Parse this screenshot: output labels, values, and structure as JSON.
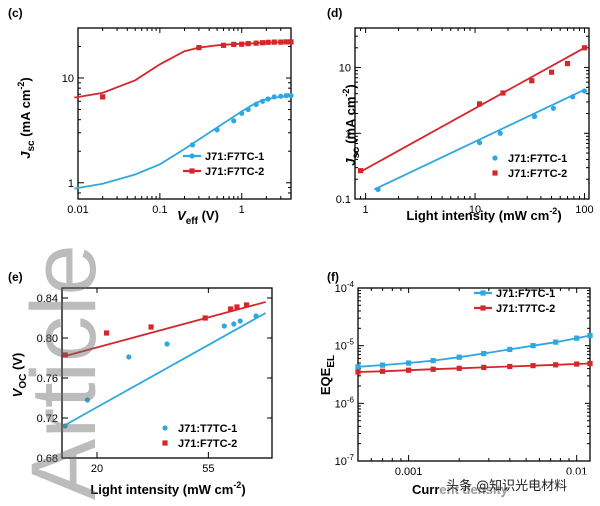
{
  "colors": {
    "blue": "#2fa7e0",
    "red": "#d6262b"
  },
  "watermark": {
    "vertical_text": "Article",
    "caption": "头条 @知识光电材料"
  },
  "chart_data": [
    {
      "id": "c",
      "panel_label": "(c)",
      "type": "line",
      "xscale": "log",
      "yscale": "log",
      "xlim": [
        0.01,
        4
      ],
      "ylim": [
        0.7,
        30
      ],
      "xlabel": "Veff (V)",
      "ylabel": "Jsc (mA cm-2)",
      "xticks": [
        {
          "v": 0.01,
          "label": "0.01"
        },
        {
          "v": 0.1,
          "label": "0.1"
        },
        {
          "v": 1,
          "label": "1"
        }
      ],
      "yticks": [
        {
          "v": 1,
          "label": "1"
        },
        {
          "v": 10,
          "label": "10"
        }
      ],
      "legend": {
        "position": "bottom-right"
      },
      "series": [
        {
          "name": "J71:F7TC-1",
          "color": "#2fa7e0",
          "marker": "circle",
          "curve_x": [
            0.009,
            0.02,
            0.05,
            0.1,
            0.2,
            0.4,
            0.7,
            1.0,
            1.5,
            2.0,
            3.0,
            4.0
          ],
          "curve_y": [
            0.88,
            0.98,
            1.2,
            1.5,
            2.1,
            3.0,
            4.0,
            4.8,
            5.8,
            6.3,
            6.6,
            6.7
          ],
          "x": [
            0.25,
            0.5,
            0.8,
            1.0,
            1.2,
            1.5,
            1.8,
            2.1,
            2.5,
            3.0,
            3.5,
            4.0
          ],
          "y": [
            2.3,
            3.2,
            3.9,
            4.6,
            5.0,
            5.6,
            6.0,
            6.3,
            6.6,
            6.7,
            6.8,
            6.8
          ]
        },
        {
          "name": "J71:F7TC-2",
          "color": "#d6262b",
          "marker": "square",
          "curve_x": [
            0.009,
            0.02,
            0.05,
            0.1,
            0.2,
            0.3,
            0.5,
            0.8,
            1.0,
            1.5,
            2.0,
            3.0,
            4.0
          ],
          "curve_y": [
            6.5,
            7.2,
            9.5,
            13.5,
            18.0,
            19.5,
            20.5,
            21.0,
            21.2,
            21.5,
            21.8,
            22.0,
            22.1
          ],
          "x": [
            0.02,
            0.3,
            0.6,
            0.8,
            1.0,
            1.2,
            1.5,
            1.8,
            2.1,
            2.5,
            3.0,
            3.5,
            4.0
          ],
          "y": [
            6.6,
            19.5,
            20.5,
            20.9,
            21.0,
            21.3,
            21.5,
            21.7,
            21.9,
            22.0,
            22.0,
            22.1,
            22.1
          ]
        }
      ]
    },
    {
      "id": "d",
      "panel_label": "(d)",
      "type": "scatter",
      "xscale": "log",
      "yscale": "log",
      "xlim": [
        0.8,
        110
      ],
      "ylim": [
        0.1,
        40
      ],
      "xlabel": "Light intensity (mW cm-2)",
      "ylabel": "Jsc (mA cm-2)",
      "xticks": [
        {
          "v": 1,
          "label": "1"
        },
        {
          "v": 10,
          "label": "10"
        },
        {
          "v": 100,
          "label": "100"
        }
      ],
      "yticks": [
        {
          "v": 0.1,
          "label": "0.1"
        },
        {
          "v": 1,
          "label": "1"
        },
        {
          "v": 10,
          "label": "10"
        }
      ],
      "legend": {
        "position": "bottom-right"
      },
      "series": [
        {
          "name": "J71:F7TC-1",
          "color": "#2fa7e0",
          "marker": "circle",
          "fit": [
            [
              1.2,
              0.14
            ],
            [
              100,
              4.6
            ]
          ],
          "x": [
            1.3,
            11,
            17,
            35,
            52,
            78,
            100
          ],
          "y": [
            0.14,
            0.72,
            1.0,
            1.8,
            2.4,
            3.6,
            4.4
          ]
        },
        {
          "name": "J71:F7TC-2",
          "color": "#d6262b",
          "marker": "square",
          "fit": [
            [
              0.9,
              0.26
            ],
            [
              100,
              20
            ]
          ],
          "x": [
            0.9,
            11,
            18,
            33,
            50,
            70,
            100
          ],
          "y": [
            0.27,
            2.8,
            4.1,
            6.3,
            8.5,
            11.5,
            20
          ]
        }
      ]
    },
    {
      "id": "e",
      "panel_label": "(e)",
      "type": "scatter",
      "xscale": "linear",
      "yscale": "linear",
      "xlim": [
        9,
        75
      ],
      "ylim": [
        0.68,
        0.85
      ],
      "xlabel": "Light intensity (mW cm-2)",
      "ylabel": "VOC (V)",
      "xticks": [
        {
          "v": 20,
          "label": "20"
        },
        {
          "v": 55,
          "label": "55"
        }
      ],
      "yticks": [
        {
          "v": 0.68,
          "label": "0.68"
        },
        {
          "v": 0.72,
          "label": "0.72"
        },
        {
          "v": 0.76,
          "label": "0.76"
        },
        {
          "v": 0.8,
          "label": "0.80"
        },
        {
          "v": 0.84,
          "label": "0.84"
        }
      ],
      "legend": {
        "position": "bottom-right"
      },
      "series": [
        {
          "name": "J71:T7TC-1",
          "color": "#2fa7e0",
          "marker": "circle",
          "fit": [
            [
              10,
              0.713
            ],
            [
              73,
              0.825
            ]
          ],
          "x": [
            10,
            17,
            30,
            42,
            60,
            63,
            65,
            70
          ],
          "y": [
            0.712,
            0.738,
            0.781,
            0.794,
            0.812,
            0.814,
            0.817,
            0.822
          ]
        },
        {
          "name": "J71:F7TC-2",
          "color": "#d6262b",
          "marker": "square",
          "fit": [
            [
              10,
              0.782
            ],
            [
              73,
              0.836
            ]
          ],
          "x": [
            10,
            23,
            37,
            54,
            62,
            64,
            67
          ],
          "y": [
            0.783,
            0.805,
            0.811,
            0.82,
            0.829,
            0.831,
            0.833
          ]
        }
      ]
    },
    {
      "id": "f",
      "panel_label": "(f)",
      "type": "line",
      "xscale": "log",
      "yscale": "log",
      "xlim": [
        0.0005,
        0.012
      ],
      "ylim": [
        1e-07,
        0.0001
      ],
      "xlabel": "Current density",
      "ylabel": "EQEEL",
      "xticks": [
        {
          "v": 0.001,
          "label": "0.001"
        },
        {
          "v": 0.01,
          "label": "0.01"
        }
      ],
      "yticks": [
        {
          "v": 1e-07,
          "label": "10-7"
        },
        {
          "v": 1e-06,
          "label": "10-6"
        },
        {
          "v": 1e-05,
          "label": "10-5"
        },
        {
          "v": 0.0001,
          "label": "10-4"
        }
      ],
      "legend": {
        "position": "top-right"
      },
      "series": [
        {
          "name": "J71:F7TC-1",
          "color": "#2fa7e0",
          "marker": "square",
          "x": [
            0.0005,
            0.0007,
            0.001,
            0.0014,
            0.002,
            0.0028,
            0.004,
            0.0055,
            0.0075,
            0.01,
            0.012
          ],
          "y": [
            4.3e-06,
            4.6e-06,
            5e-06,
            5.5e-06,
            6.3e-06,
            7.3e-06,
            8.6e-06,
            1e-05,
            1.15e-05,
            1.35e-05,
            1.5e-05
          ]
        },
        {
          "name": "J71:T7TC-2",
          "color": "#d6262b",
          "marker": "square",
          "x": [
            0.0005,
            0.0007,
            0.001,
            0.0014,
            0.002,
            0.0028,
            0.004,
            0.0055,
            0.0075,
            0.01,
            0.012
          ],
          "y": [
            3.5e-06,
            3.6e-06,
            3.75e-06,
            3.9e-06,
            4.05e-06,
            4.2e-06,
            4.35e-06,
            4.5e-06,
            4.65e-06,
            4.8e-06,
            4.9e-06
          ]
        }
      ]
    }
  ]
}
